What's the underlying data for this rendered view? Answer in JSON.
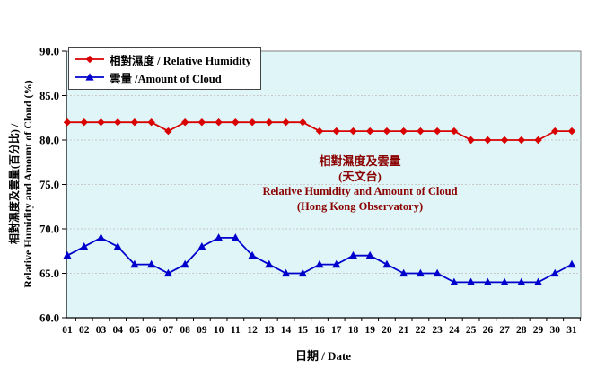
{
  "figure": {
    "background": "#FFFFFF",
    "plot_background": "#DFF5F7",
    "grid_color": "#C8C8C8",
    "frame_color": "#808080",
    "axis_color": "#000000"
  },
  "legend": {
    "items": [
      {
        "label": "相對濕度 / Relative Humidity",
        "marker": "diamond",
        "color": "#D90000"
      },
      {
        "label": "雲量 /Amount of Cloud",
        "marker": "triangle",
        "color": "#0000CD"
      }
    ]
  },
  "annotation": {
    "color": "#8B0000",
    "line1": "相對濕度及雲量",
    "line2": "(天文台)",
    "line3": "Relative Humidity and Amount of Cloud",
    "line4": "(Hong Kong Observatory)"
  },
  "axes": {
    "y_label_zh": "相對濕度及雲量(百分比) /",
    "y_label_en": "Relative Humidity and Amount of Cloud (%)",
    "x_label": "日期 / Date",
    "y_tick_labels": [
      "90.0",
      "85.0",
      "80.0",
      "75.0",
      "70.0",
      "65.0",
      "60.0"
    ]
  },
  "chart_data": {
    "type": "line",
    "title": "相對濕度及雲量 (天文台) / Relative Humidity and Amount of Cloud (Hong Kong Observatory)",
    "xlabel": "日期 / Date",
    "ylabel": "相對濕度及雲量(百分比) / Relative Humidity and Amount of Cloud (%)",
    "ylim": [
      60,
      90
    ],
    "y_tick_step": 5,
    "grid": true,
    "legend_position": "top-left",
    "categories": [
      "01",
      "02",
      "03",
      "04",
      "05",
      "06",
      "07",
      "08",
      "09",
      "10",
      "11",
      "12",
      "13",
      "14",
      "15",
      "16",
      "17",
      "18",
      "19",
      "20",
      "21",
      "22",
      "23",
      "24",
      "25",
      "26",
      "27",
      "28",
      "29",
      "30",
      "31"
    ],
    "series": [
      {
        "name": "相對濕度 / Relative Humidity",
        "marker": "diamond",
        "color": "#D90000",
        "values": [
          82,
          82,
          82,
          82,
          82,
          82,
          81,
          82,
          82,
          82,
          82,
          82,
          82,
          82,
          82,
          81,
          81,
          81,
          81,
          81,
          81,
          81,
          81,
          81,
          80,
          80,
          80,
          80,
          80,
          81,
          81
        ]
      },
      {
        "name": "雲量 /Amount of Cloud",
        "marker": "triangle",
        "color": "#0000CD",
        "values": [
          67,
          68,
          69,
          68,
          66,
          66,
          65,
          66,
          68,
          69,
          69,
          67,
          66,
          65,
          65,
          66,
          66,
          67,
          67,
          66,
          65,
          65,
          65,
          64,
          64,
          64,
          64,
          64,
          64,
          65,
          66
        ]
      }
    ]
  }
}
